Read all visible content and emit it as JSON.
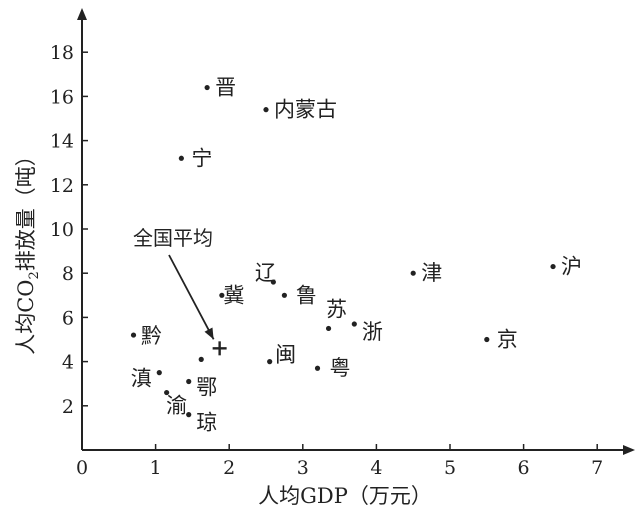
{
  "chart_data": {
    "type": "scatter",
    "title": "",
    "xlabel": "人均GDP（万元）",
    "ylabel_parts": [
      "人均CO",
      "2",
      "排放量（吨）"
    ],
    "xlim": [
      0,
      7
    ],
    "ylim": [
      0,
      18
    ],
    "xticks": [
      0,
      1,
      2,
      3,
      4,
      5,
      6,
      7
    ],
    "yticks": [
      2,
      4,
      6,
      8,
      10,
      12,
      14,
      16,
      18
    ],
    "grid": false,
    "points": [
      {
        "label": "晋",
        "x": 1.7,
        "y": 16.4
      },
      {
        "label": "内蒙古",
        "x": 2.5,
        "y": 15.4
      },
      {
        "label": "宁",
        "x": 1.35,
        "y": 13.2
      },
      {
        "label": "辽",
        "x": 2.6,
        "y": 7.6
      },
      {
        "label": "冀",
        "x": 1.9,
        "y": 7.0
      },
      {
        "label": "鲁",
        "x": 2.75,
        "y": 7.0
      },
      {
        "label": "苏",
        "x": 3.35,
        "y": 5.5
      },
      {
        "label": "浙",
        "x": 3.7,
        "y": 5.7
      },
      {
        "label": "津",
        "x": 4.5,
        "y": 8.0
      },
      {
        "label": "沪",
        "x": 6.4,
        "y": 8.3
      },
      {
        "label": "京",
        "x": 5.5,
        "y": 5.0
      },
      {
        "label": "黔",
        "x": 0.7,
        "y": 5.2
      },
      {
        "label": "滇",
        "x": 1.05,
        "y": 3.5
      },
      {
        "label": "鄂",
        "x": 1.45,
        "y": 3.1
      },
      {
        "label": "渝",
        "x": 1.15,
        "y": 2.6
      },
      {
        "label": "琼",
        "x": 1.45,
        "y": 1.6
      },
      {
        "label": "闽",
        "x": 2.55,
        "y": 4.0
      },
      {
        "label": "粤",
        "x": 3.2,
        "y": 3.7
      },
      {
        "label": "",
        "x": 1.62,
        "y": 4.1
      }
    ],
    "average": {
      "label": "全国平均",
      "x": 1.87,
      "y": 4.6
    }
  }
}
